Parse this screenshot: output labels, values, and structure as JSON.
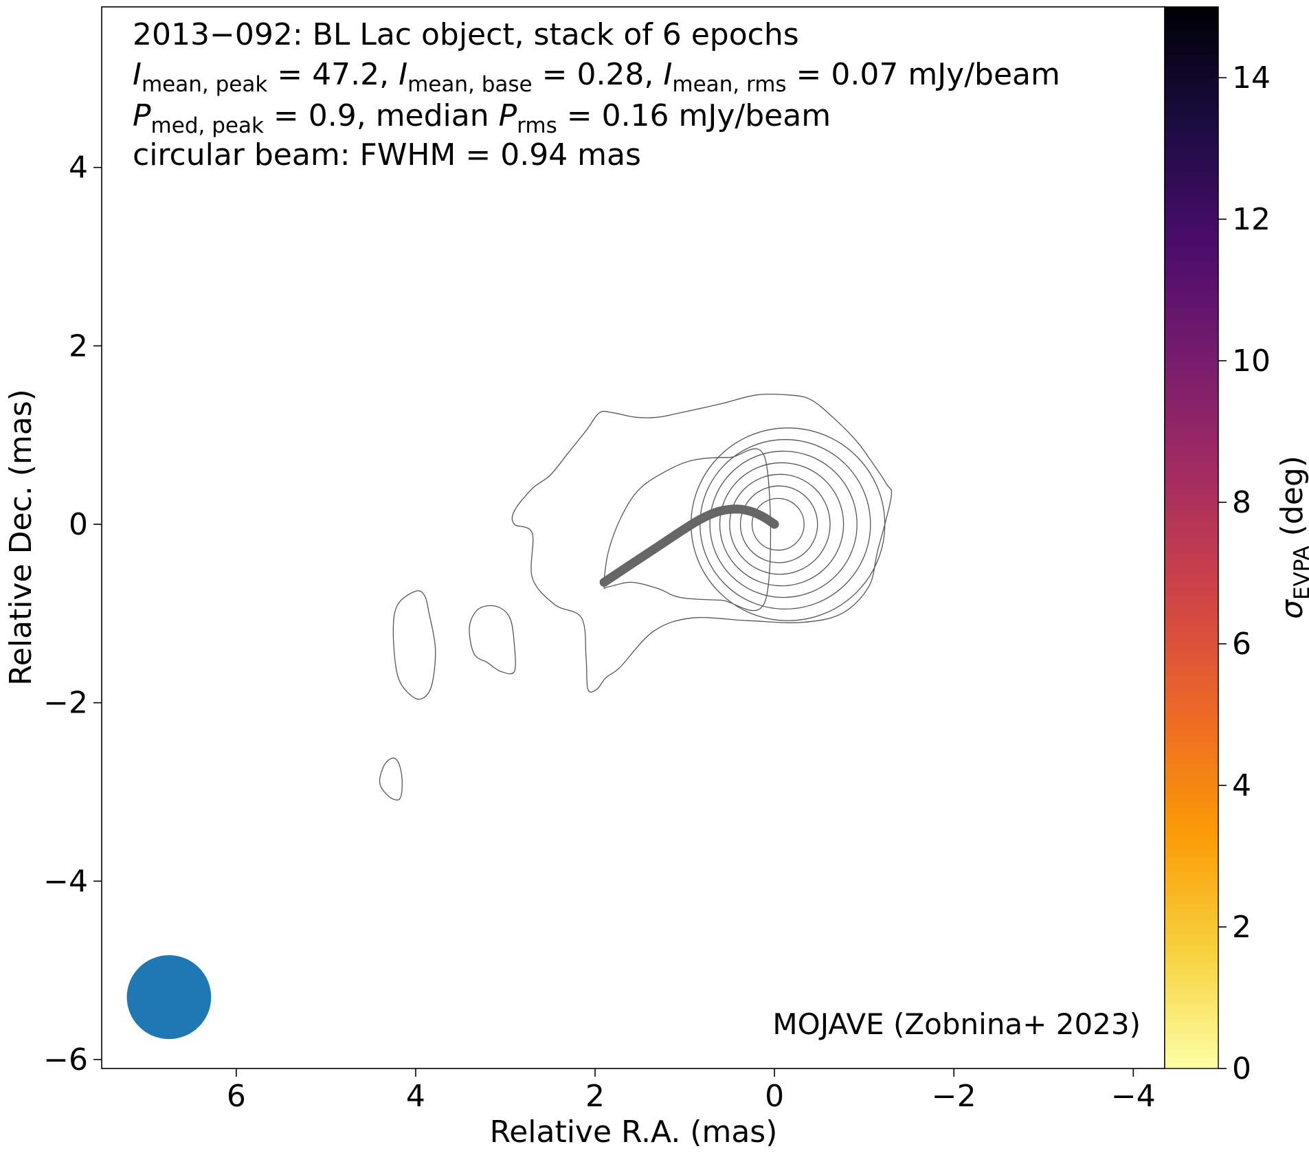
{
  "chart_data": {
    "type": "contour",
    "title_lines": [
      "2013−092: BL Lac object, stack of 6 epochs",
      [
        {
          "t": "I",
          "i": true
        },
        {
          "t": "mean, peak",
          "sub": true
        },
        {
          "t": " = 47.2, "
        },
        {
          "t": "I",
          "i": true
        },
        {
          "t": "mean, base",
          "sub": true
        },
        {
          "t": " = 0.28, "
        },
        {
          "t": "I",
          "i": true
        },
        {
          "t": "mean, rms",
          "sub": true
        },
        {
          "t": " = 0.07 mJy/beam"
        }
      ],
      [
        {
          "t": "P",
          "i": true
        },
        {
          "t": "med, peak",
          "sub": true
        },
        {
          "t": " = 0.9, median "
        },
        {
          "t": "P",
          "i": true
        },
        {
          "t": "rms",
          "sub": true
        },
        {
          "t": " = 0.16 mJy/beam"
        }
      ],
      "circular beam: FWHM = 0.94 mas"
    ],
    "xlabel": "Relative R.A. (mas)",
    "ylabel": "Relative Dec. (mas)",
    "xlim": [
      7.5,
      -4.35
    ],
    "ylim": [
      -6.1,
      5.8
    ],
    "xticks": [
      6,
      4,
      2,
      0,
      -2,
      -4
    ],
    "xtick_labels": [
      "6",
      "4",
      "2",
      "0",
      "−2",
      "−4"
    ],
    "yticks": [
      4,
      2,
      0,
      -2,
      -4,
      -6
    ],
    "ytick_labels": [
      "4",
      "2",
      "0",
      "−2",
      "−4",
      "−6"
    ],
    "contour_color": "#555555",
    "contours": [
      {
        "name": "outer",
        "points": [
          [
            2.7,
            -0.1
          ],
          [
            2.7,
            -0.6
          ],
          [
            2.45,
            -0.9
          ],
          [
            2.15,
            -1.05
          ],
          [
            2.1,
            -1.5
          ],
          [
            2.08,
            -1.85
          ],
          [
            1.98,
            -1.85
          ],
          [
            1.88,
            -1.72
          ],
          [
            1.72,
            -1.6
          ],
          [
            1.35,
            -1.2
          ],
          [
            0.92,
            -1.05
          ],
          [
            0.3,
            -1.08
          ],
          [
            -0.3,
            -1.1
          ],
          [
            -0.75,
            -1.0
          ],
          [
            -1.05,
            -0.7
          ],
          [
            -1.15,
            -0.3
          ],
          [
            -1.3,
            0.3
          ],
          [
            -1.25,
            0.45
          ],
          [
            -1.05,
            0.75
          ],
          [
            -0.9,
            0.95
          ],
          [
            -0.65,
            1.2
          ],
          [
            -0.4,
            1.4
          ],
          [
            -0.15,
            1.45
          ],
          [
            0.2,
            1.45
          ],
          [
            0.6,
            1.35
          ],
          [
            1.05,
            1.25
          ],
          [
            1.3,
            1.2
          ],
          [
            1.55,
            1.2
          ],
          [
            1.8,
            1.25
          ],
          [
            1.95,
            1.25
          ],
          [
            2.1,
            1.05
          ],
          [
            2.3,
            0.8
          ],
          [
            2.5,
            0.55
          ],
          [
            2.7,
            0.4
          ],
          [
            2.9,
            0.15
          ],
          [
            2.9,
            0.0
          ]
        ]
      },
      {
        "name": "inner-lobe",
        "points": [
          [
            1.9,
            -0.68
          ],
          [
            1.85,
            -0.3
          ],
          [
            1.7,
            0.1
          ],
          [
            1.5,
            0.4
          ],
          [
            1.2,
            0.6
          ],
          [
            0.9,
            0.72
          ],
          [
            0.5,
            0.75
          ],
          [
            0.1,
            0.72
          ],
          [
            0.1,
            -0.85
          ],
          [
            0.6,
            -0.85
          ],
          [
            1.05,
            -0.82
          ],
          [
            1.3,
            -0.72
          ],
          [
            1.6,
            -0.65
          ],
          [
            1.85,
            -0.7
          ]
        ]
      },
      {
        "name": "island-1",
        "points": [
          [
            4.0,
            -0.75
          ],
          [
            4.2,
            -0.9
          ],
          [
            4.25,
            -1.2
          ],
          [
            4.2,
            -1.7
          ],
          [
            4.05,
            -1.92
          ],
          [
            3.92,
            -1.95
          ],
          [
            3.82,
            -1.8
          ],
          [
            3.78,
            -1.4
          ],
          [
            3.85,
            -1.0
          ],
          [
            3.9,
            -0.8
          ]
        ]
      },
      {
        "name": "island-2",
        "points": [
          [
            3.1,
            -0.92
          ],
          [
            3.3,
            -0.95
          ],
          [
            3.4,
            -1.15
          ],
          [
            3.35,
            -1.45
          ],
          [
            3.2,
            -1.55
          ],
          [
            3.05,
            -1.65
          ],
          [
            2.9,
            -1.65
          ],
          [
            2.9,
            -1.35
          ],
          [
            2.95,
            -1.05
          ]
        ]
      },
      {
        "name": "island-3",
        "points": [
          [
            4.25,
            -2.62
          ],
          [
            4.35,
            -2.7
          ],
          [
            4.4,
            -2.9
          ],
          [
            4.3,
            -3.05
          ],
          [
            4.18,
            -3.08
          ],
          [
            4.15,
            -2.9
          ],
          [
            4.18,
            -2.7
          ]
        ]
      }
    ],
    "core_circles": [
      {
        "cx": -0.15,
        "cy": 0.0,
        "r": 1.08
      },
      {
        "cx": -0.12,
        "cy": 0.0,
        "r": 0.95
      },
      {
        "cx": -0.1,
        "cy": 0.0,
        "r": 0.82
      },
      {
        "cx": -0.08,
        "cy": 0.0,
        "r": 0.69
      },
      {
        "cx": -0.06,
        "cy": 0.0,
        "r": 0.56
      },
      {
        "cx": -0.05,
        "cy": 0.0,
        "r": 0.43
      },
      {
        "cx": -0.04,
        "cy": 0.0,
        "r": 0.29
      }
    ],
    "ridgeline": {
      "color": "#666666",
      "points": [
        [
          1.9,
          -0.65
        ],
        [
          1.6,
          -0.45
        ],
        [
          1.3,
          -0.25
        ],
        [
          1.0,
          -0.05
        ],
        [
          0.8,
          0.07
        ],
        [
          0.6,
          0.15
        ],
        [
          0.4,
          0.17
        ],
        [
          0.25,
          0.14
        ],
        [
          0.12,
          0.08
        ],
        [
          0.0,
          0.0
        ]
      ]
    },
    "beam": {
      "x": 6.75,
      "y": -5.3,
      "fwhm": 0.94,
      "color": "#1f77b4"
    },
    "colorbar": {
      "label_symbol": "σ",
      "label_sub": "EVPA",
      "label_unit": "(deg)",
      "range": [
        0,
        15
      ],
      "ticks": [
        0,
        2,
        4,
        6,
        8,
        10,
        12,
        14
      ],
      "tick_labels": [
        "0",
        "2",
        "4",
        "6",
        "8",
        "10",
        "12",
        "14"
      ],
      "colormap": "inferno_r",
      "stops": [
        "#fcffa4",
        "#f7d13d",
        "#fb9b06",
        "#ed6925",
        "#cf4446",
        "#a52c60",
        "#781c6d",
        "#4a0c6b",
        "#1b0c41",
        "#000004"
      ]
    },
    "credit": "MOJAVE (Zobnina+ 2023)"
  }
}
